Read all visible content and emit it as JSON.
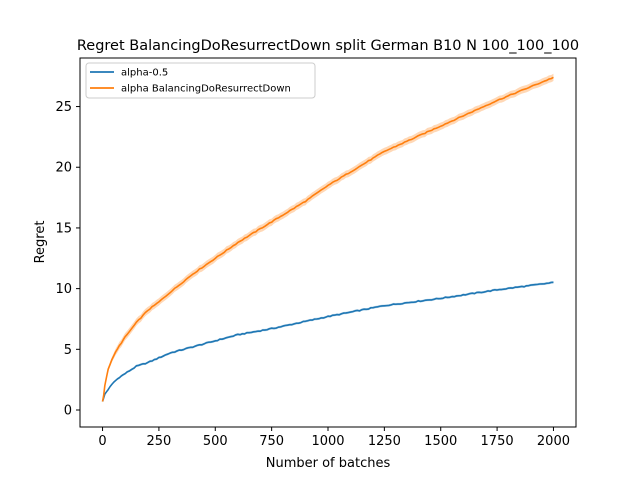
{
  "chart_data": {
    "type": "line",
    "title": "Regret BalancingDoResurrectDown split German B10 N 100_100_100",
    "xlabel": "Number of batches",
    "ylabel": "Regret",
    "xlim": [
      -100,
      2100
    ],
    "ylim": [
      -1.4,
      29.0
    ],
    "x_ticks": [
      0,
      250,
      500,
      750,
      1000,
      1250,
      1500,
      1750,
      2000
    ],
    "x_tick_labels": [
      "0",
      "250",
      "500",
      "750",
      "1000",
      "1250",
      "1500",
      "1750",
      "2000"
    ],
    "y_ticks": [
      0,
      5,
      10,
      15,
      20,
      25
    ],
    "y_tick_labels": [
      "0",
      "5",
      "10",
      "15",
      "20",
      "25"
    ],
    "grid": false,
    "legend_position": "top-left",
    "series": [
      {
        "name": "alpha-0.5",
        "color": "#1f77b4",
        "x": [
          0,
          5,
          10,
          25,
          50,
          75,
          100,
          150,
          200,
          250,
          300,
          400,
          500,
          600,
          750,
          900,
          1000,
          1250,
          1500,
          1750,
          2000
        ],
        "y": [
          0.7,
          1.0,
          1.3,
          1.7,
          2.3,
          2.7,
          3.0,
          3.6,
          3.9,
          4.3,
          4.7,
          5.2,
          5.7,
          6.2,
          6.7,
          7.3,
          7.7,
          8.6,
          9.2,
          9.9,
          10.5
        ],
        "band": 0.1
      },
      {
        "name": "alpha BalancingDoResurrectDown",
        "color": "#ff7f0e",
        "x": [
          0,
          5,
          10,
          25,
          50,
          75,
          100,
          150,
          200,
          250,
          300,
          400,
          500,
          600,
          750,
          900,
          1000,
          1250,
          1500,
          1750,
          2000
        ],
        "y": [
          0.7,
          1.2,
          2.0,
          3.4,
          4.5,
          5.3,
          6.0,
          7.2,
          8.2,
          8.9,
          9.7,
          11.2,
          12.5,
          13.8,
          15.5,
          17.2,
          18.5,
          21.3,
          23.4,
          25.5,
          27.4
        ],
        "band": 0.3
      }
    ]
  }
}
